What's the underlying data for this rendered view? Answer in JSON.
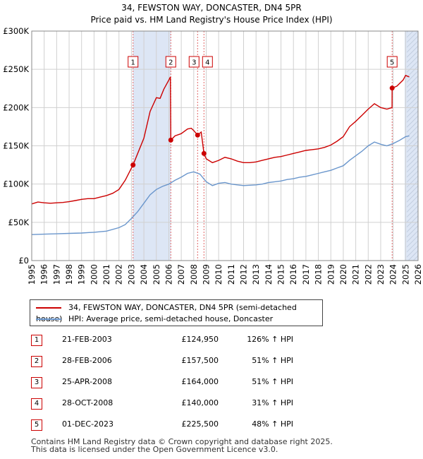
{
  "title_line1": "34, FEWSTON WAY, DONCASTER, DN4 5PR",
  "title_line2": "Price paid vs. HM Land Registry's House Price Index (HPI)",
  "colors": {
    "property": "#cc0000",
    "hpi": "#6a96cc",
    "shade": "#dde6f5",
    "grid": "#d0d0d0"
  },
  "chart_data": {
    "type": "line",
    "title": "34, FEWSTON WAY, DONCASTER, DN4 5PR",
    "subtitle": "Price paid vs. HM Land Registry's House Price Index (HPI)",
    "xlim": [
      1995,
      2026
    ],
    "ylim": [
      0,
      300000
    ],
    "x_ticks": [
      "1995",
      "1996",
      "1997",
      "1998",
      "1999",
      "2000",
      "2001",
      "2002",
      "2003",
      "2004",
      "2005",
      "2006",
      "2007",
      "2008",
      "2009",
      "2010",
      "2011",
      "2012",
      "2013",
      "2014",
      "2015",
      "2016",
      "2017",
      "2018",
      "2019",
      "2020",
      "2021",
      "2022",
      "2023",
      "2024",
      "2025",
      "2026"
    ],
    "y_ticks": [
      {
        "value": 0,
        "label": "£0"
      },
      {
        "value": 50000,
        "label": "£50K"
      },
      {
        "value": 100000,
        "label": "£100K"
      },
      {
        "value": 150000,
        "label": "£150K"
      },
      {
        "value": 200000,
        "label": "£200K"
      },
      {
        "value": 250000,
        "label": "£250K"
      },
      {
        "value": 300000,
        "label": "£300K"
      }
    ],
    "shaded_periods": [
      [
        2003.13,
        2006.16
      ],
      [
        2024.92,
        2026
      ]
    ],
    "hatched_period": [
      2025.1,
      2026
    ],
    "series": [
      {
        "name": "34, FEWSTON WAY, DONCASTER, DN4 5PR (semi-detached house)",
        "points": [
          [
            1995.0,
            74000
          ],
          [
            1995.5,
            76500
          ],
          [
            1996.0,
            75500
          ],
          [
            1996.5,
            75000
          ],
          [
            1997.0,
            75500
          ],
          [
            1997.5,
            76000
          ],
          [
            1998.0,
            77000
          ],
          [
            1998.5,
            78500
          ],
          [
            1999.0,
            80000
          ],
          [
            1999.5,
            81000
          ],
          [
            2000.0,
            81000
          ],
          [
            2000.5,
            83000
          ],
          [
            2001.0,
            85000
          ],
          [
            2001.5,
            88000
          ],
          [
            2002.0,
            93000
          ],
          [
            2002.5,
            105000
          ],
          [
            2003.13,
            124950
          ],
          [
            2003.5,
            140000
          ],
          [
            2004.0,
            160000
          ],
          [
            2004.5,
            195000
          ],
          [
            2005.0,
            213000
          ],
          [
            2005.3,
            212000
          ],
          [
            2005.6,
            224000
          ],
          [
            2006.0,
            236000
          ],
          [
            2006.13,
            240000
          ],
          [
            2006.16,
            157500
          ],
          [
            2006.5,
            163000
          ],
          [
            2007.0,
            166000
          ],
          [
            2007.5,
            172000
          ],
          [
            2007.8,
            173000
          ],
          [
            2008.0,
            170000
          ],
          [
            2008.31,
            164000
          ],
          [
            2008.6,
            168000
          ],
          [
            2008.82,
            140000
          ],
          [
            2009.0,
            133000
          ],
          [
            2009.5,
            128000
          ],
          [
            2010.0,
            131000
          ],
          [
            2010.5,
            135000
          ],
          [
            2011.0,
            133000
          ],
          [
            2011.5,
            130000
          ],
          [
            2012.0,
            128000
          ],
          [
            2012.5,
            128000
          ],
          [
            2013.0,
            129000
          ],
          [
            2013.5,
            131000
          ],
          [
            2014.0,
            133000
          ],
          [
            2014.5,
            135000
          ],
          [
            2015.0,
            136000
          ],
          [
            2015.5,
            138000
          ],
          [
            2016.0,
            140000
          ],
          [
            2016.5,
            142000
          ],
          [
            2017.0,
            144000
          ],
          [
            2017.5,
            145000
          ],
          [
            2018.0,
            146000
          ],
          [
            2018.5,
            148000
          ],
          [
            2019.0,
            151000
          ],
          [
            2019.5,
            156000
          ],
          [
            2020.0,
            162000
          ],
          [
            2020.5,
            175000
          ],
          [
            2021.0,
            182000
          ],
          [
            2021.5,
            190000
          ],
          [
            2022.0,
            198000
          ],
          [
            2022.5,
            205000
          ],
          [
            2023.0,
            200000
          ],
          [
            2023.5,
            198000
          ],
          [
            2023.91,
            200000
          ],
          [
            2023.92,
            225500
          ],
          [
            2024.3,
            228000
          ],
          [
            2024.8,
            236000
          ],
          [
            2025.0,
            242000
          ],
          [
            2025.3,
            240000
          ]
        ]
      },
      {
        "name": "HPI: Average price, semi-detached house, Doncaster",
        "points": [
          [
            1995.0,
            34000
          ],
          [
            1996.0,
            34500
          ],
          [
            1997.0,
            35000
          ],
          [
            1998.0,
            35500
          ],
          [
            1999.0,
            36000
          ],
          [
            2000.0,
            37000
          ],
          [
            2001.0,
            38500
          ],
          [
            2002.0,
            43000
          ],
          [
            2002.5,
            47000
          ],
          [
            2003.0,
            55000
          ],
          [
            2003.5,
            64000
          ],
          [
            2004.0,
            75000
          ],
          [
            2004.5,
            86000
          ],
          [
            2005.0,
            93000
          ],
          [
            2005.5,
            97000
          ],
          [
            2006.0,
            100000
          ],
          [
            2006.5,
            105000
          ],
          [
            2007.0,
            109000
          ],
          [
            2007.5,
            114000
          ],
          [
            2008.0,
            116000
          ],
          [
            2008.5,
            113000
          ],
          [
            2009.0,
            103000
          ],
          [
            2009.5,
            98000
          ],
          [
            2010.0,
            101000
          ],
          [
            2010.5,
            102000
          ],
          [
            2011.0,
            100000
          ],
          [
            2011.5,
            99000
          ],
          [
            2012.0,
            98000
          ],
          [
            2012.5,
            98500
          ],
          [
            2013.0,
            99000
          ],
          [
            2013.5,
            100000
          ],
          [
            2014.0,
            102000
          ],
          [
            2014.5,
            103000
          ],
          [
            2015.0,
            104000
          ],
          [
            2015.5,
            106000
          ],
          [
            2016.0,
            107000
          ],
          [
            2016.5,
            109000
          ],
          [
            2017.0,
            110000
          ],
          [
            2017.5,
            112000
          ],
          [
            2018.0,
            114000
          ],
          [
            2018.5,
            116000
          ],
          [
            2019.0,
            118000
          ],
          [
            2019.5,
            121000
          ],
          [
            2020.0,
            124000
          ],
          [
            2020.5,
            131000
          ],
          [
            2021.0,
            137000
          ],
          [
            2021.5,
            143000
          ],
          [
            2022.0,
            150000
          ],
          [
            2022.5,
            155000
          ],
          [
            2023.0,
            152000
          ],
          [
            2023.5,
            150000
          ],
          [
            2024.0,
            153000
          ],
          [
            2024.5,
            157000
          ],
          [
            2025.0,
            162000
          ],
          [
            2025.3,
            163000
          ]
        ]
      }
    ],
    "sales": [
      {
        "id": "1",
        "x": 2003.13,
        "price": 124950
      },
      {
        "id": "2",
        "x": 2006.16,
        "price": 157500
      },
      {
        "id": "3",
        "x": 2008.31,
        "price": 164000
      },
      {
        "id": "4",
        "x": 2008.82,
        "price": 140000
      },
      {
        "id": "5",
        "x": 2023.92,
        "price": 225500
      }
    ]
  },
  "legend": {
    "property": "34, FEWSTON WAY, DONCASTER, DN4 5PR (semi-detached house)",
    "hpi": "HPI: Average price, semi-detached house, Doncaster"
  },
  "sales_table": [
    {
      "num": "1",
      "date": "21-FEB-2003",
      "price": "£124,950",
      "hpi": "126% ↑ HPI"
    },
    {
      "num": "2",
      "date": "28-FEB-2006",
      "price": "£157,500",
      "hpi": "51% ↑ HPI"
    },
    {
      "num": "3",
      "date": "25-APR-2008",
      "price": "£164,000",
      "hpi": "51% ↑ HPI"
    },
    {
      "num": "4",
      "date": "28-OCT-2008",
      "price": "£140,000",
      "hpi": "31% ↑ HPI"
    },
    {
      "num": "5",
      "date": "01-DEC-2023",
      "price": "£225,500",
      "hpi": "48% ↑ HPI"
    }
  ],
  "footer_line1": "Contains HM Land Registry data © Crown copyright and database right 2025.",
  "footer_line2": "This data is licensed under the Open Government Licence v3.0."
}
